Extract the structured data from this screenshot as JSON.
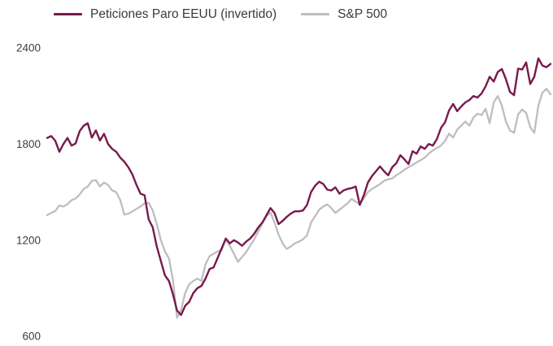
{
  "chart_data": {
    "type": "line",
    "title": "",
    "xlabel": "",
    "ylabel": "",
    "x_axis_labels_visible": false,
    "grid": false,
    "background": "#ffffff",
    "legend_position": "top-left",
    "ylim": [
      600,
      2400
    ],
    "yticks": [
      2400,
      1800,
      1200,
      600
    ],
    "tick_color": "#3c3c3c",
    "series": [
      {
        "name": "Peticiones Paro EEUU (invertido)",
        "color": "#771A4D",
        "stroke_width": 2.4,
        "values": [
          1838,
          1850,
          1820,
          1752,
          1800,
          1838,
          1790,
          1803,
          1880,
          1914,
          1930,
          1840,
          1885,
          1822,
          1864,
          1800,
          1770,
          1752,
          1715,
          1690,
          1655,
          1610,
          1545,
          1490,
          1480,
          1330,
          1280,
          1160,
          1070,
          980,
          945,
          860,
          760,
          733,
          790,
          815,
          870,
          900,
          915,
          960,
          1020,
          1030,
          1090,
          1150,
          1210,
          1180,
          1200,
          1185,
          1165,
          1190,
          1210,
          1240,
          1280,
          1310,
          1355,
          1400,
          1370,
          1300,
          1320,
          1345,
          1365,
          1380,
          1380,
          1385,
          1420,
          1500,
          1540,
          1565,
          1550,
          1515,
          1510,
          1530,
          1490,
          1510,
          1520,
          1525,
          1535,
          1420,
          1480,
          1560,
          1600,
          1630,
          1660,
          1630,
          1605,
          1655,
          1680,
          1730,
          1705,
          1675,
          1755,
          1740,
          1785,
          1770,
          1800,
          1790,
          1830,
          1900,
          1935,
          2010,
          2050,
          2005,
          2035,
          2060,
          2075,
          2100,
          2090,
          2115,
          2160,
          2220,
          2190,
          2250,
          2268,
          2205,
          2125,
          2105,
          2270,
          2265,
          2310,
          2175,
          2220,
          2335,
          2290,
          2280,
          2300
        ]
      },
      {
        "name": "S&P 500",
        "color": "#BEBEBE",
        "stroke_width": 2.3,
        "values": [
          1357,
          1370,
          1382,
          1417,
          1410,
          1425,
          1450,
          1460,
          1485,
          1520,
          1535,
          1570,
          1575,
          1535,
          1560,
          1545,
          1510,
          1500,
          1450,
          1360,
          1365,
          1380,
          1395,
          1410,
          1430,
          1433,
          1385,
          1300,
          1200,
          1130,
          1085,
          945,
          715,
          765,
          870,
          925,
          945,
          960,
          945,
          1050,
          1100,
          1115,
          1130,
          1140,
          1205,
          1165,
          1115,
          1065,
          1095,
          1125,
          1165,
          1205,
          1255,
          1305,
          1350,
          1372,
          1310,
          1235,
          1180,
          1145,
          1160,
          1180,
          1190,
          1205,
          1230,
          1310,
          1350,
          1390,
          1410,
          1423,
          1400,
          1370,
          1390,
          1410,
          1430,
          1458,
          1440,
          1425,
          1460,
          1500,
          1520,
          1535,
          1550,
          1570,
          1580,
          1585,
          1605,
          1620,
          1640,
          1655,
          1670,
          1685,
          1700,
          1715,
          1740,
          1760,
          1775,
          1790,
          1820,
          1865,
          1840,
          1890,
          1915,
          1940,
          1915,
          1965,
          1990,
          1980,
          2020,
          1930,
          2060,
          2100,
          2040,
          1940,
          1885,
          1870,
          1985,
          2015,
          1995,
          1905,
          1870,
          2040,
          2120,
          2145,
          2110
        ]
      }
    ]
  }
}
